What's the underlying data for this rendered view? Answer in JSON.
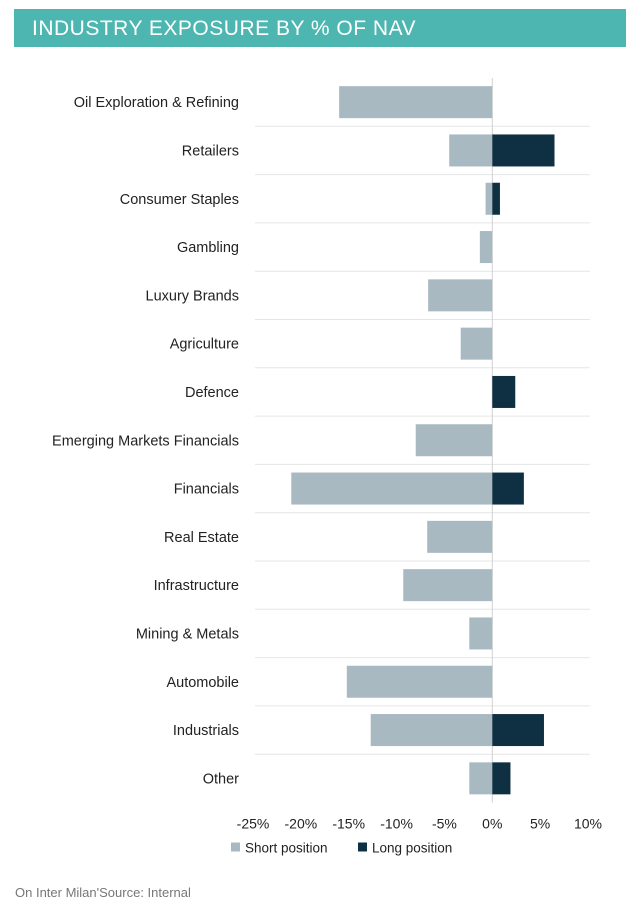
{
  "title": "INDUSTRY EXPOSURE BY % OF NAV",
  "source": "On Inter Milan'Source: Internal",
  "colors": {
    "header": "#4db6b0",
    "short": "#a9b9c1",
    "long": "#0f3042",
    "grid": "#e6e6e6",
    "zero_line": "#d0d0d0",
    "text": "#222222"
  },
  "chart_data": {
    "type": "bar",
    "orientation": "horizontal",
    "title": "INDUSTRY EXPOSURE BY % OF NAV",
    "categories": [
      "Oil Exploration & Refining",
      "Retailers",
      "Consumer Staples",
      "Gambling",
      "Luxury Brands",
      "Agriculture",
      "Defence",
      "Emerging Markets Financials",
      "Financials",
      "Real Estate",
      "Infrastructure",
      "Mining & Metals",
      "Automobile",
      "Industrials",
      "Other"
    ],
    "series": [
      {
        "name": "Short position",
        "color": "#a9b9c1",
        "values": [
          -16,
          -4.5,
          -0.7,
          -1.3,
          -6.7,
          -3.3,
          0,
          -8,
          -21,
          -6.8,
          -9.3,
          -2.4,
          -15.2,
          -12.7,
          -2.4
        ]
      },
      {
        "name": "Long position",
        "color": "#0f3042",
        "values": [
          0,
          6.5,
          0.8,
          0,
          0,
          0,
          2.4,
          0,
          3.3,
          0,
          0,
          0,
          0,
          5.4,
          1.9
        ]
      }
    ],
    "xlim": [
      -25,
      10
    ],
    "xticks": [
      -25,
      -20,
      -15,
      -10,
      -5,
      0,
      5,
      10
    ],
    "xtick_labels": [
      "-25%",
      "-20%",
      "-15%",
      "-10%",
      "-5%",
      "0%",
      "5%",
      "10%"
    ],
    "grid": "horizontal separators",
    "legend": "bottom"
  }
}
